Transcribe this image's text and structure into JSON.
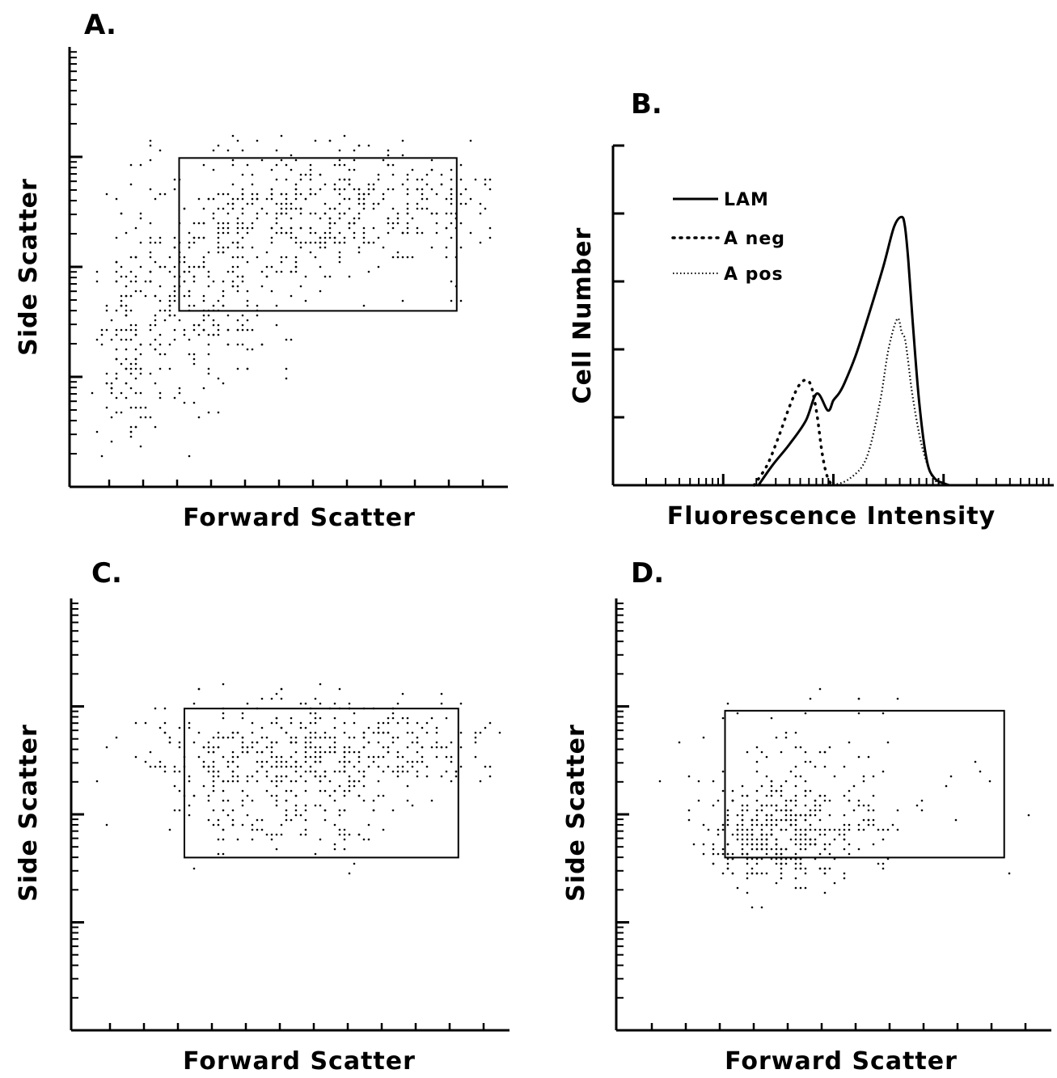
{
  "chart_data": [
    {
      "panel": "A.",
      "type": "scatter",
      "xlabel": "Forward Scatter",
      "ylabel": "Side Scatter",
      "y_scale": "log",
      "y_decades": 4,
      "xlim": [
        0,
        12
      ],
      "ylim": [
        0,
        4
      ],
      "gate": {
        "x": [
          3,
          10.6
        ],
        "y": [
          1.6,
          2.99
        ]
      },
      "density_regions": [
        {
          "cx": 6.5,
          "cy": 2.5,
          "sx": 2.3,
          "sy": 0.35,
          "n": 420
        },
        {
          "cx": 3.3,
          "cy": 1.7,
          "sx": 1.2,
          "sy": 0.45,
          "n": 260
        },
        {
          "cx": 9.6,
          "cy": 2.55,
          "sx": 1.2,
          "sy": 0.22,
          "n": 90
        },
        {
          "cx": 1.6,
          "cy": 1.2,
          "sx": 0.5,
          "sy": 0.45,
          "n": 110
        }
      ]
    },
    {
      "panel": "B.",
      "type": "line",
      "xlabel": "Fluorescence Intensity",
      "ylabel": "Cell Number",
      "x_scale": "log",
      "xlim": [
        0,
        4
      ],
      "ylim": [
        0,
        5
      ],
      "series": [
        {
          "name": "LAM",
          "style": "solid",
          "x": [
            1.32,
            1.45,
            1.6,
            1.75,
            1.85,
            1.95,
            2.0,
            2.05,
            2.1,
            2.2,
            2.3,
            2.45,
            2.55,
            2.62,
            2.65,
            2.68,
            2.72,
            2.78,
            2.85,
            2.92,
            3.0,
            3.05
          ],
          "y": [
            0,
            0.3,
            0.6,
            0.95,
            1.35,
            1.1,
            1.25,
            1.35,
            1.5,
            1.9,
            2.4,
            3.2,
            3.8,
            3.95,
            3.8,
            3.3,
            2.4,
            1.2,
            0.35,
            0.1,
            0.03,
            0
          ]
        },
        {
          "name": "A neg",
          "style": "dotted",
          "x": [
            1.28,
            1.4,
            1.5,
            1.6,
            1.68,
            1.75,
            1.8,
            1.85,
            1.9,
            1.95,
            2.0
          ],
          "y": [
            0,
            0.3,
            0.7,
            1.15,
            1.45,
            1.55,
            1.45,
            1.05,
            0.45,
            0.1,
            0
          ]
        },
        {
          "name": "A pos",
          "style": "fine-dotted",
          "x": [
            2.0,
            2.15,
            2.3,
            2.42,
            2.5,
            2.58,
            2.62,
            2.65,
            2.68,
            2.72,
            2.8,
            2.9,
            3.0
          ],
          "y": [
            0,
            0.1,
            0.4,
            1.2,
            2.0,
            2.45,
            2.25,
            2.15,
            1.8,
            1.3,
            0.6,
            0.12,
            0
          ]
        }
      ]
    },
    {
      "panel": "C.",
      "type": "scatter",
      "xlabel": "Forward Scatter",
      "ylabel": "Side Scatter",
      "y_scale": "log",
      "y_decades": 4,
      "xlim": [
        0,
        12
      ],
      "ylim": [
        0,
        4
      ],
      "gate": {
        "x": [
          3.1,
          10.6
        ],
        "y": [
          1.6,
          2.98
        ]
      },
      "density_regions": [
        {
          "cx": 6.6,
          "cy": 2.6,
          "sx": 2.3,
          "sy": 0.25,
          "n": 450
        },
        {
          "cx": 4.8,
          "cy": 2.1,
          "sx": 1.5,
          "sy": 0.3,
          "n": 90
        },
        {
          "cx": 7.2,
          "cy": 2.0,
          "sx": 1.1,
          "sy": 0.22,
          "n": 50
        }
      ]
    },
    {
      "panel": "D.",
      "type": "scatter",
      "xlabel": "Forward Scatter",
      "ylabel": "Side Scatter",
      "y_scale": "log",
      "y_decades": 4,
      "xlim": [
        0,
        12
      ],
      "ylim": [
        0,
        4
      ],
      "gate": {
        "x": [
          3,
          10.7
        ],
        "y": [
          1.6,
          2.96
        ]
      },
      "density_regions": [
        {
          "cx": 4.6,
          "cy": 1.8,
          "sx": 1.0,
          "sy": 0.22,
          "n": 320
        },
        {
          "cx": 5.0,
          "cy": 2.2,
          "sx": 1.4,
          "sy": 0.35,
          "n": 110
        },
        {
          "cx": 7.5,
          "cy": 2.3,
          "sx": 1.8,
          "sy": 0.45,
          "n": 35
        }
      ]
    }
  ]
}
